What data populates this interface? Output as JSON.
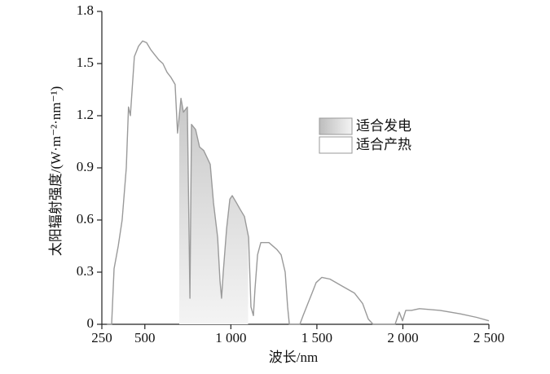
{
  "chart_data": {
    "type": "line",
    "xlabel": "波长/nm",
    "ylabel": "太阳辐射强度/(W·m⁻²·nm⁻¹)",
    "xlim": [
      250,
      2500
    ],
    "ylim": [
      0,
      1.8
    ],
    "xticks": [
      {
        "value": 250,
        "label": "250"
      },
      {
        "value": 500,
        "label": "500"
      },
      {
        "value": 1000,
        "label": "1 000"
      },
      {
        "value": 1500,
        "label": "1 500"
      },
      {
        "value": 2000,
        "label": "2 000"
      },
      {
        "value": 2500,
        "label": "2 500"
      }
    ],
    "yticks": [
      0,
      0.3,
      0.6,
      0.9,
      1.2,
      1.5,
      1.8
    ],
    "x": [
      280,
      307,
      321,
      345,
      368,
      392,
      405,
      416,
      439,
      463,
      487,
      510,
      534,
      558,
      582,
      605,
      629,
      652,
      676,
      690,
      710,
      724,
      747,
      762,
      771,
      795,
      818,
      842,
      866,
      880,
      899,
      923,
      937,
      946,
      956,
      975,
      994,
      1008,
      1032,
      1055,
      1079,
      1103,
      1117,
      1131,
      1140,
      1155,
      1174,
      1221,
      1268,
      1292,
      1316,
      1330,
      1340,
      1401,
      1420,
      1448,
      1472,
      1496,
      1529,
      1576,
      1647,
      1718,
      1766,
      1799,
      1827,
      1955,
      1979,
      1998,
      2017,
      2050,
      2097,
      2216,
      2334,
      2429,
      2500
    ],
    "series": [
      {
        "color": "#9a9a9a",
        "values": [
          0,
          0,
          0.32,
          0.45,
          0.6,
          0.9,
          1.25,
          1.2,
          1.54,
          1.6,
          1.63,
          1.62,
          1.58,
          1.55,
          1.52,
          1.5,
          1.45,
          1.42,
          1.38,
          1.1,
          1.3,
          1.22,
          1.25,
          0.15,
          1.15,
          1.12,
          1.02,
          1.0,
          0.95,
          0.92,
          0.7,
          0.5,
          0.25,
          0.15,
          0.3,
          0.55,
          0.72,
          0.74,
          0.7,
          0.66,
          0.62,
          0.5,
          0.1,
          0.05,
          0.2,
          0.4,
          0.47,
          0.47,
          0.43,
          0.4,
          0.3,
          0.1,
          0,
          0,
          0.05,
          0.12,
          0.18,
          0.24,
          0.27,
          0.26,
          0.22,
          0.18,
          0.12,
          0.03,
          0,
          0,
          0.07,
          0.02,
          0.08,
          0.08,
          0.09,
          0.08,
          0.06,
          0.04,
          0.02
        ]
      }
    ],
    "regions": [
      {
        "name": "适合发电",
        "range": [
          700,
          1100
        ],
        "color": "#bdbdbd"
      },
      {
        "name": "适合产热",
        "color": "#ffffff"
      }
    ],
    "legend": "right"
  }
}
